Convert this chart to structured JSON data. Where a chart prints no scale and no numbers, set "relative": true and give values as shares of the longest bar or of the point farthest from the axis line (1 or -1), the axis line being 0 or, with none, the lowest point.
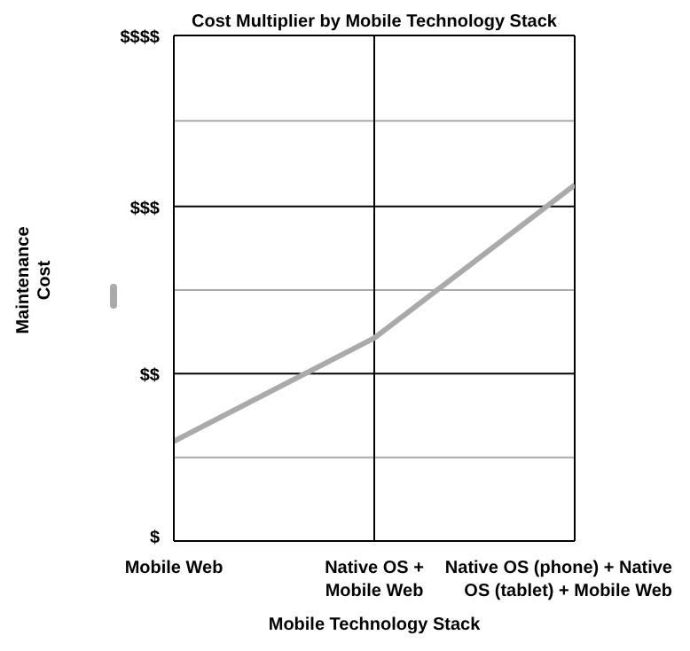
{
  "chart_data": {
    "type": "line",
    "title": "Cost Multiplier by Mobile Technology Stack",
    "xlabel": "Mobile Technology Stack",
    "ylabel": "Maintenance Cost",
    "categories": [
      "Mobile Web",
      "Native OS + Mobile Web",
      "Native OS (phone) + Native OS (tablet) + Mobile Web"
    ],
    "series": [
      {
        "color": "#aaaaaa",
        "values": [
          0.28,
          0.57,
          1
        ]
      }
    ],
    "relative": true,
    "annotations": [
      "$"
    ],
    "ref_lines": [
      {
        "axis": "y",
        "value": 0.235,
        "color": "#aaaaaa"
      },
      {
        "axis": "y",
        "value": 0.47,
        "label": "$$",
        "color": "#000000"
      },
      {
        "axis": "y",
        "value": 0.705,
        "color": "#aaaaaa"
      },
      {
        "axis": "y",
        "value": 0.94,
        "label": "$$$",
        "color": "#000000"
      },
      {
        "axis": "y",
        "value": 1.18,
        "color": "#aaaaaa"
      },
      {
        "axis": "y",
        "value": 1.42,
        "label": "$$$$",
        "color": "#000000"
      }
    ],
    "grid": "x",
    "marker": "none",
    "line_style": "solid"
  }
}
